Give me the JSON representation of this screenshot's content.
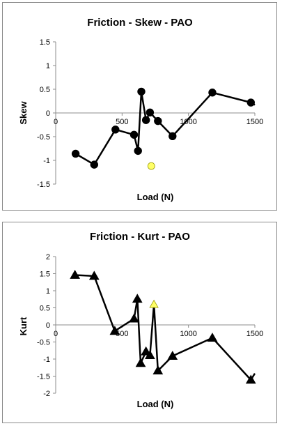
{
  "chart_data": [
    {
      "type": "line",
      "title": "Friction - Skew - PAO",
      "xlabel": "Load (N)",
      "ylabel": "Skew",
      "xlim": [
        0,
        1500
      ],
      "ylim": [
        -1.5,
        1.5
      ],
      "xticks": [
        "0",
        "500",
        "1000",
        "1500"
      ],
      "yticks": [
        "1.5",
        "1",
        "0.5",
        "0",
        "-0.5",
        "-1",
        "-1.5"
      ],
      "grid": false,
      "marker": "circle",
      "series": [
        {
          "x": [
            150,
            290,
            450,
            590,
            620,
            645,
            680,
            710,
            770,
            880,
            1180,
            1470,
            1500
          ],
          "y": [
            -0.86,
            -1.09,
            -0.35,
            -0.46,
            -0.8,
            0.45,
            -0.15,
            0.01,
            -0.17,
            -0.49,
            0.43,
            0.22,
            0.17
          ],
          "markers": [
            true,
            true,
            true,
            true,
            true,
            true,
            true,
            true,
            true,
            true,
            true,
            true,
            false
          ]
        }
      ],
      "highlight": {
        "x": 720,
        "y": -1.12,
        "color": "#ffff66"
      },
      "line_color": "#000000"
    },
    {
      "type": "line",
      "title": "Friction - Kurt - PAO",
      "xlabel": "Load (N)",
      "ylabel": "Kurt",
      "xlim": [
        0,
        1500
      ],
      "ylim": [
        -2,
        2
      ],
      "xticks": [
        "0",
        "500",
        "1000",
        "1500"
      ],
      "yticks": [
        "2",
        "1.5",
        "1",
        "0.5",
        "0",
        "-0.5",
        "-1",
        "-1.5",
        "-2"
      ],
      "grid": false,
      "marker": "triangle",
      "series": [
        {
          "x": [
            145,
            290,
            445,
            590,
            615,
            640,
            680,
            710,
            740,
            770,
            880,
            1180,
            1470,
            1500
          ],
          "y": [
            1.46,
            1.43,
            -0.18,
            0.18,
            0.76,
            -1.12,
            -0.78,
            -0.89,
            0.6,
            -1.34,
            -0.91,
            -0.38,
            -1.61,
            -1.42
          ],
          "markers": [
            true,
            true,
            true,
            true,
            true,
            true,
            true,
            true,
            false,
            true,
            true,
            true,
            true,
            false
          ]
        }
      ],
      "highlight": {
        "x": 740,
        "y": 0.6,
        "color": "#ffff66"
      },
      "line_color": "#000000"
    }
  ]
}
